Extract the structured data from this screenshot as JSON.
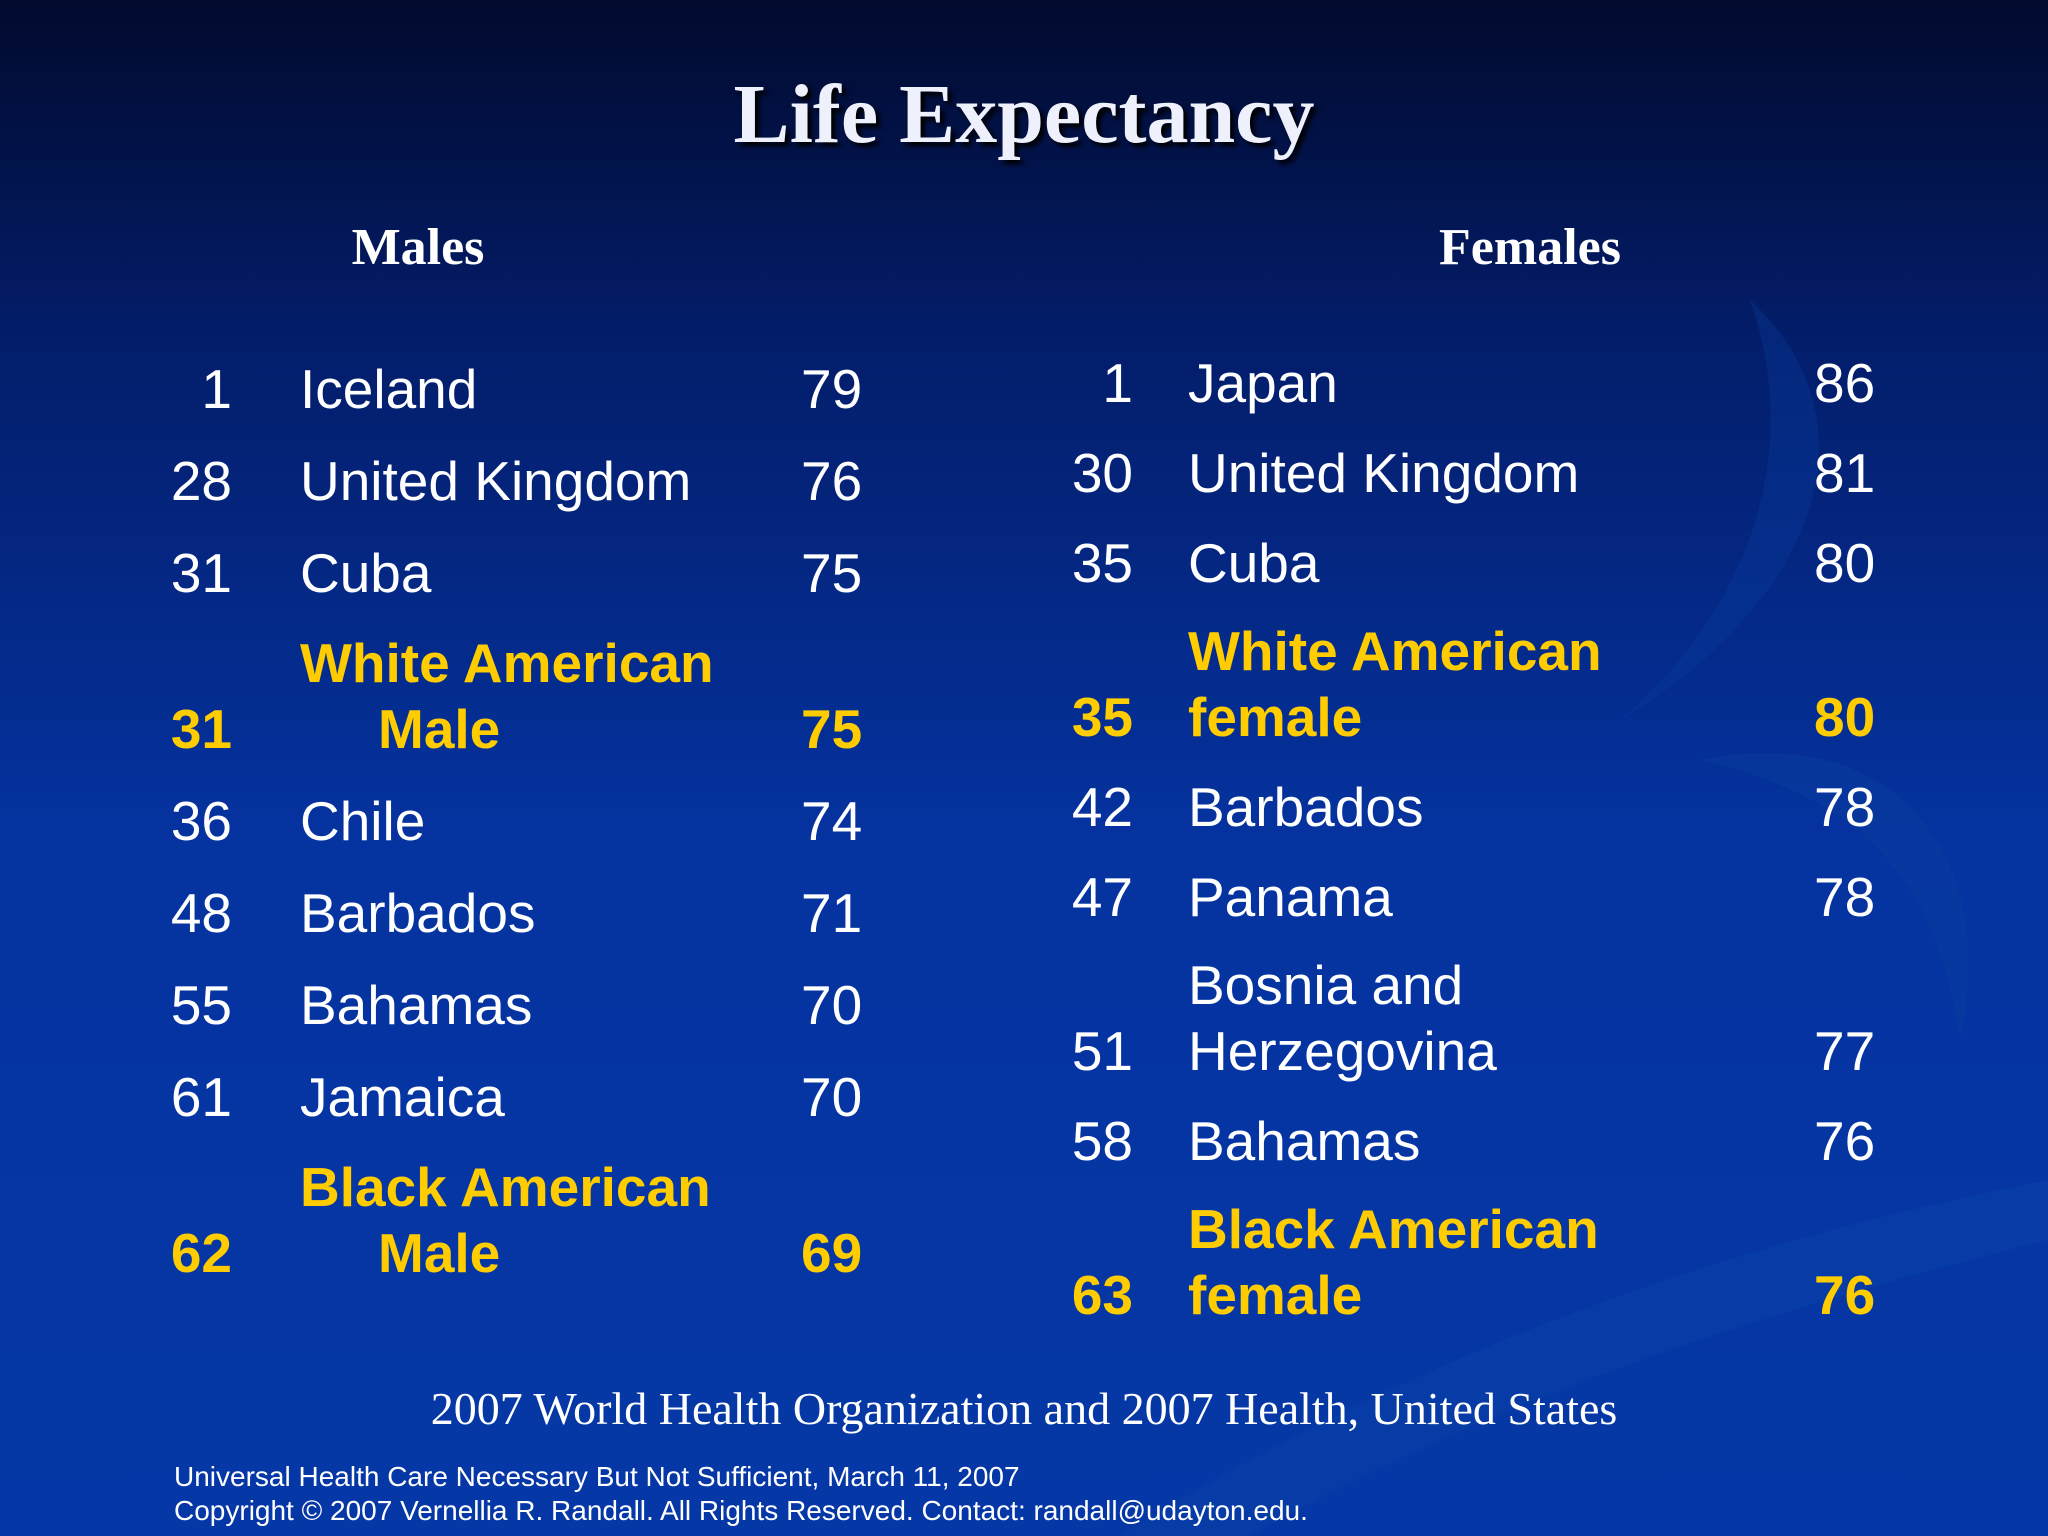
{
  "slide": {
    "title": "Life Expectancy",
    "source": "2007 World Health Organization and 2007 Health, United States",
    "footer_line1": "Universal Health Care Necessary But Not Sufficient,  March 11, 2007",
    "footer_line2": "Copyright © 2007 Vernellia R. Randall. All Rights Reserved. Contact: randall@udayton.edu."
  },
  "colors": {
    "highlight": "#ffcc00",
    "text": "#ffffff",
    "background": "#0533a0"
  },
  "males": {
    "heading": "Males",
    "rows": [
      {
        "rank": "1",
        "name": [
          "Iceland"
        ],
        "value": "79",
        "highlight": false
      },
      {
        "rank": "28",
        "name": [
          "United Kingdom"
        ],
        "value": "76",
        "highlight": false
      },
      {
        "rank": "31",
        "name": [
          "Cuba"
        ],
        "value": "75",
        "highlight": false
      },
      {
        "rank": "31",
        "name": [
          "White American",
          "Male"
        ],
        "value": "75",
        "highlight": true
      },
      {
        "rank": "36",
        "name": [
          "Chile"
        ],
        "value": "74",
        "highlight": false
      },
      {
        "rank": "48",
        "name": [
          "Barbados"
        ],
        "value": "71",
        "highlight": false
      },
      {
        "rank": "55",
        "name": [
          "Bahamas"
        ],
        "value": "70",
        "highlight": false
      },
      {
        "rank": "61",
        "name": [
          "Jamaica"
        ],
        "value": "70",
        "highlight": false
      },
      {
        "rank": "62",
        "name": [
          "Black American",
          "Male"
        ],
        "value": "69",
        "highlight": true
      }
    ]
  },
  "females": {
    "heading": "Females",
    "rows": [
      {
        "rank": "1",
        "name": [
          "Japan"
        ],
        "value": "86",
        "highlight": false
      },
      {
        "rank": "30",
        "name": [
          "United Kingdom"
        ],
        "value": "81",
        "highlight": false
      },
      {
        "rank": "35",
        "name": [
          "Cuba"
        ],
        "value": "80",
        "highlight": false
      },
      {
        "rank": "35",
        "name": [
          "White American",
          "female"
        ],
        "value": "80",
        "highlight": true
      },
      {
        "rank": "42",
        "name": [
          "Barbados"
        ],
        "value": "78",
        "highlight": false
      },
      {
        "rank": "47",
        "name": [
          "Panama"
        ],
        "value": "78",
        "highlight": false
      },
      {
        "rank": "51",
        "name": [
          "Bosnia and",
          "Herzegovina"
        ],
        "value": "77",
        "highlight": false
      },
      {
        "rank": "58",
        "name": [
          "Bahamas"
        ],
        "value": "76",
        "highlight": false
      },
      {
        "rank": "63",
        "name": [
          "Black American",
          "female"
        ],
        "value": "76",
        "highlight": true
      }
    ]
  }
}
